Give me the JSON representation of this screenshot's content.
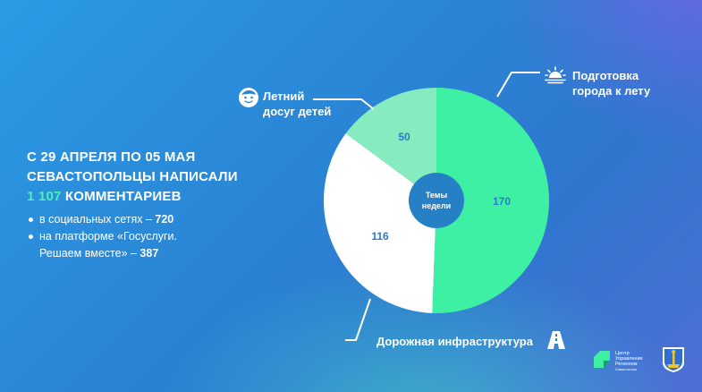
{
  "headline": {
    "line1": "С 29 АПРЕЛЯ ПО 05 МАЯ",
    "line2": "СЕВАСТОПОЛЬЦЫ НАПИСАЛИ",
    "count": "1 107",
    "line3_rest": "КОММЕНТАРИЕВ"
  },
  "bullets": [
    {
      "text": "в социальных сетях – ",
      "value": "720"
    },
    {
      "text_line1": "на платформе «Госуслуги.",
      "text_line2": "Решаем вместе» – ",
      "value": "387"
    }
  ],
  "chart_data": {
    "type": "pie",
    "center_label_line1": "Темы",
    "center_label_line2": "недели",
    "slices": [
      {
        "label_line1": "Подготовка",
        "label_line2": "города к лету",
        "value": 170,
        "color": "#3ef0a4",
        "icon": "sunrise-icon"
      },
      {
        "label_line1": "Дорожная инфраструктура",
        "label_line2": "",
        "value": 116,
        "color": "#ffffff",
        "icon": "road-icon"
      },
      {
        "label_line1": "Летний",
        "label_line2": "досуг детей",
        "value": 50,
        "color": "#86ecc0",
        "icon": "kid-face-icon"
      }
    ]
  },
  "colors": {
    "value_text": "#2a7cc4",
    "center_circle": "#2680c6",
    "accent": "#4ff0b0"
  },
  "logo": {
    "line1": "Центр",
    "line2": "Управления",
    "line3": "Регионом",
    "line4": "Севастополь"
  }
}
